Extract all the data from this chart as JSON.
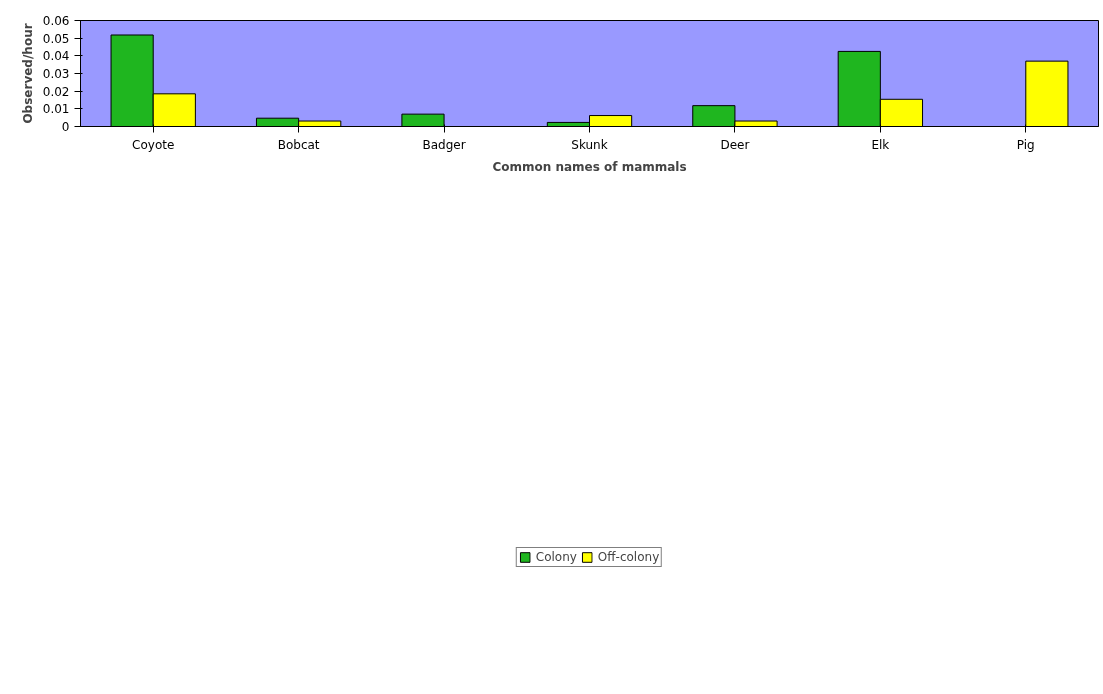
{
  "chart_data": {
    "type": "bar",
    "xlabel": "Common names of mammals",
    "ylabel": "Observed/hour",
    "categories": [
      "Coyote",
      "Bobcat",
      "Badger",
      "Skunk",
      "Deer",
      "Elk",
      "Pig"
    ],
    "series": [
      {
        "name": "Colony",
        "color": "#1fb61f",
        "values": [
          0.0518,
          0.0047,
          0.007,
          0.0023,
          0.0118,
          0.0425,
          null
        ]
      },
      {
        "name": "Off-colony",
        "color": "#ffff00",
        "values": [
          0.0185,
          0.0031,
          null,
          0.0062,
          0.0031,
          0.0154,
          0.037
        ]
      }
    ],
    "ylim": [
      0,
      0.06
    ],
    "yticks": [
      0,
      0.01,
      0.02,
      0.03,
      0.04,
      0.05,
      0.06
    ],
    "grid": false,
    "legend": "bottom"
  }
}
